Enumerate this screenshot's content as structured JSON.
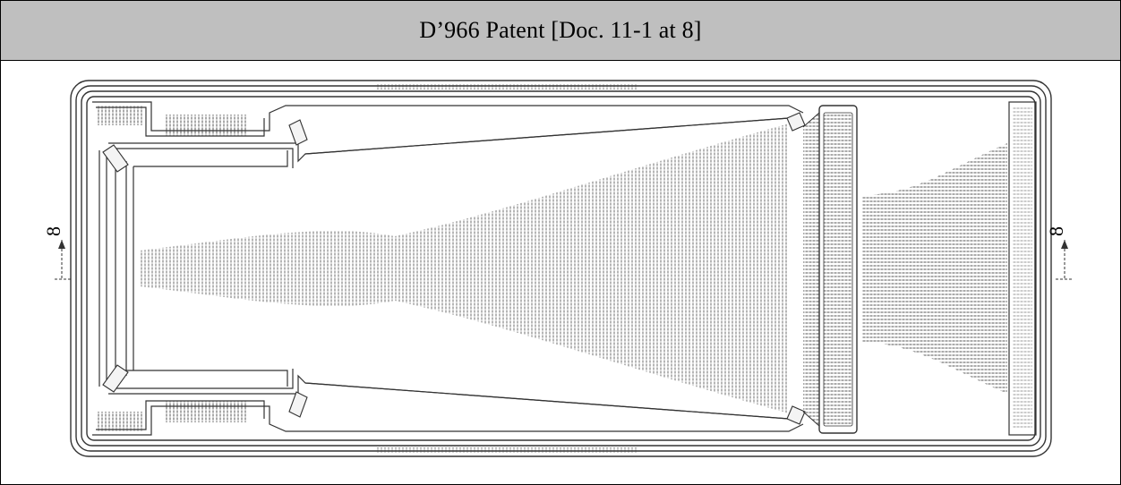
{
  "header": {
    "title": "D’966 Patent [Doc. 11-1 at 8]"
  },
  "figure": {
    "section_marker_left": "8",
    "section_marker_right": "8",
    "line_color": "#333333",
    "header_background": "#bfbfbf"
  }
}
